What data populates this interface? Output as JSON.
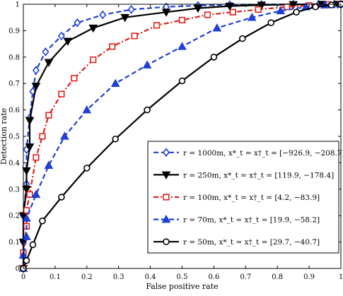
{
  "chart_data": {
    "type": "line",
    "title": "",
    "xlabel": "False positive rate",
    "ylabel": "Detection rate",
    "xlim": [
      0,
      1
    ],
    "ylim": [
      0,
      1
    ],
    "x_ticks": [
      "0",
      "0.1",
      "0.2",
      "0.3",
      "0.4",
      "0.5",
      "0.6",
      "0.7",
      "0.8",
      "0.9",
      "1"
    ],
    "y_ticks": [
      "0",
      "0.1",
      "0.2",
      "0.3",
      "0.4",
      "0.5",
      "0.6",
      "0.7",
      "0.8",
      "0.9",
      "1"
    ],
    "grid": false,
    "legend_position": "bottom-right",
    "series": [
      {
        "legend": "r = 1000m, x*_t = x†_t = [−926.9, −208.7]",
        "color": "#1f3fd6",
        "line_style": "dashed",
        "marker": "diamond",
        "marker_fill": "none",
        "points": [
          [
            0.0,
            0.0
          ],
          [
            0.0,
            0.1
          ],
          [
            0.0,
            0.2
          ],
          [
            0.01,
            0.32
          ],
          [
            0.01,
            0.45
          ],
          [
            0.02,
            0.57
          ],
          [
            0.03,
            0.67
          ],
          [
            0.04,
            0.75
          ],
          [
            0.07,
            0.82
          ],
          [
            0.12,
            0.88
          ],
          [
            0.17,
            0.93
          ],
          [
            0.25,
            0.96
          ],
          [
            0.34,
            0.98
          ],
          [
            0.45,
            0.99
          ],
          [
            0.55,
            0.995
          ],
          [
            0.65,
            0.998
          ],
          [
            0.75,
            0.999
          ],
          [
            0.85,
            1.0
          ],
          [
            0.93,
            1.0
          ],
          [
            0.98,
            1.0
          ],
          [
            1.0,
            1.0
          ]
        ]
      },
      {
        "legend": "r = 250m, x*_t = x†_t = [119.9, −178.4]",
        "color": "#000000",
        "line_style": "solid",
        "marker": "triangle-down",
        "marker_fill": "solid",
        "points": [
          [
            0.0,
            0.0
          ],
          [
            0.0,
            0.1
          ],
          [
            0.0,
            0.2
          ],
          [
            0.01,
            0.3
          ],
          [
            0.01,
            0.37
          ],
          [
            0.02,
            0.46
          ],
          [
            0.02,
            0.56
          ],
          [
            0.04,
            0.69
          ],
          [
            0.08,
            0.78
          ],
          [
            0.14,
            0.86
          ],
          [
            0.22,
            0.91
          ],
          [
            0.32,
            0.95
          ],
          [
            0.45,
            0.97
          ],
          [
            0.55,
            0.985
          ],
          [
            0.65,
            0.993
          ],
          [
            0.75,
            0.997
          ],
          [
            0.85,
            0.999
          ],
          [
            0.94,
            1.0
          ],
          [
            0.99,
            1.0
          ],
          [
            1.0,
            1.0
          ]
        ]
      },
      {
        "legend": "r = 100m, x*_t = x†_t = [4.2, −83.9]",
        "color": "#e0201a",
        "line_style": "dashdot",
        "marker": "square",
        "marker_fill": "none",
        "points": [
          [
            0.0,
            0.0
          ],
          [
            0.0,
            0.06
          ],
          [
            0.01,
            0.16
          ],
          [
            0.01,
            0.22
          ],
          [
            0.02,
            0.28
          ],
          [
            0.04,
            0.42
          ],
          [
            0.06,
            0.5
          ],
          [
            0.08,
            0.58
          ],
          [
            0.12,
            0.66
          ],
          [
            0.16,
            0.72
          ],
          [
            0.22,
            0.79
          ],
          [
            0.28,
            0.84
          ],
          [
            0.35,
            0.88
          ],
          [
            0.42,
            0.92
          ],
          [
            0.5,
            0.94
          ],
          [
            0.58,
            0.96
          ],
          [
            0.66,
            0.97
          ],
          [
            0.74,
            0.98
          ],
          [
            0.83,
            0.99
          ],
          [
            0.9,
            0.995
          ],
          [
            0.96,
            0.999
          ],
          [
            1.0,
            1.0
          ]
        ]
      },
      {
        "legend": "r = 70m, x*_t = x†_t = [19.9, −58.2]",
        "color": "#1f3fd6",
        "line_style": "dashed",
        "marker": "triangle-up",
        "marker_fill": "solid",
        "points": [
          [
            0.0,
            0.0
          ],
          [
            0.0,
            0.05
          ],
          [
            0.01,
            0.12
          ],
          [
            0.01,
            0.19
          ],
          [
            0.04,
            0.28
          ],
          [
            0.08,
            0.39
          ],
          [
            0.13,
            0.5
          ],
          [
            0.2,
            0.6
          ],
          [
            0.29,
            0.7
          ],
          [
            0.39,
            0.77
          ],
          [
            0.5,
            0.84
          ],
          [
            0.61,
            0.91
          ],
          [
            0.72,
            0.95
          ],
          [
            0.81,
            0.975
          ],
          [
            0.89,
            0.99
          ],
          [
            0.95,
            0.997
          ],
          [
            1.0,
            1.0
          ]
        ]
      },
      {
        "legend": "r = 50m, x*_t = x†_t = [29.7, −40.7]",
        "color": "#000000",
        "line_style": "solid",
        "marker": "circle",
        "marker_fill": "none",
        "points": [
          [
            0.0,
            0.0
          ],
          [
            0.01,
            0.03
          ],
          [
            0.03,
            0.09
          ],
          [
            0.06,
            0.18
          ],
          [
            0.12,
            0.27
          ],
          [
            0.2,
            0.38
          ],
          [
            0.29,
            0.49
          ],
          [
            0.39,
            0.6
          ],
          [
            0.5,
            0.71
          ],
          [
            0.6,
            0.8
          ],
          [
            0.69,
            0.87
          ],
          [
            0.78,
            0.93
          ],
          [
            0.86,
            0.97
          ],
          [
            0.92,
            0.99
          ],
          [
            0.97,
            0.997
          ],
          [
            1.0,
            1.0
          ]
        ]
      }
    ]
  }
}
